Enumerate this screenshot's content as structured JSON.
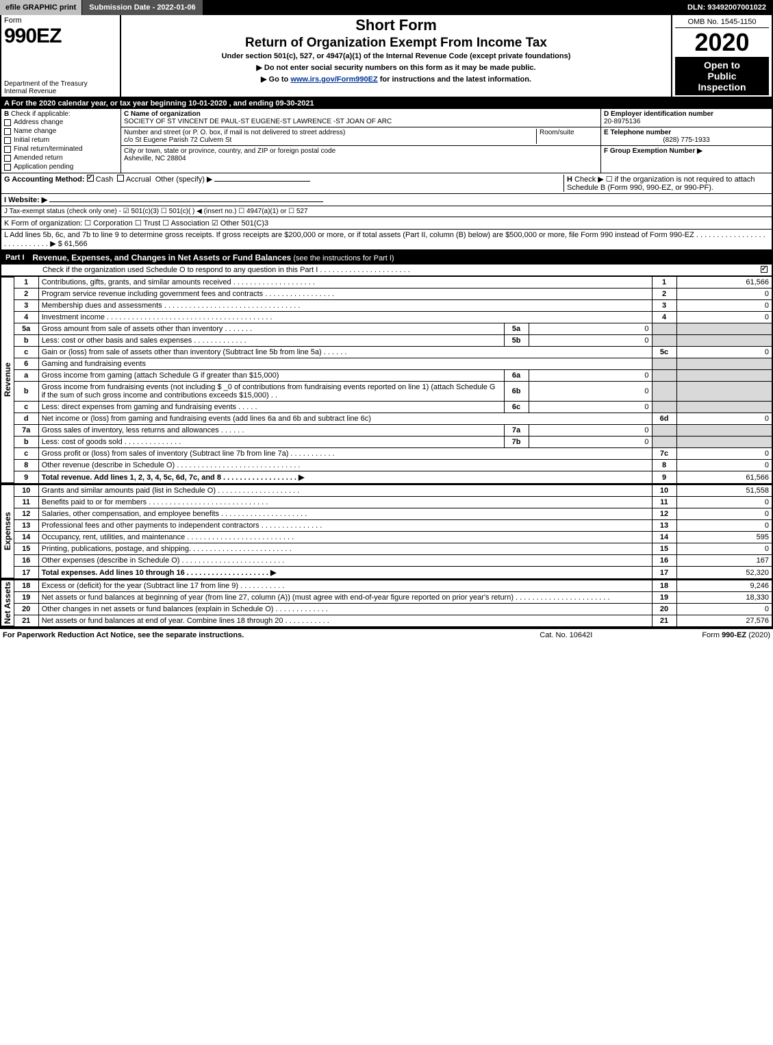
{
  "topbar": {
    "efile": "efile GRAPHIC print",
    "submission": "Submission Date - 2022-01-06",
    "dln": "DLN: 93492007001022"
  },
  "header": {
    "form_word": "Form",
    "form_num": "990EZ",
    "dept1": "Department of the Treasury",
    "dept2": "Internal Revenue",
    "short_form": "Short Form",
    "title": "Return of Organization Exempt From Income Tax",
    "under": "Under section 501(c), 527, or 4947(a)(1) of the Internal Revenue Code (except private foundations)",
    "warn": "▶ Do not enter social security numbers on this form as it may be made public.",
    "goto_pre": "▶ Go to ",
    "goto_link": "www.irs.gov/Form990EZ",
    "goto_post": " for instructions and the latest information.",
    "omb": "OMB No. 1545-1150",
    "year": "2020",
    "open1": "Open to",
    "open2": "Public",
    "open3": "Inspection"
  },
  "row_a": "A For the 2020 calendar year, or tax year beginning 10-01-2020 , and ending 09-30-2021",
  "boxB": {
    "title": "B",
    "check_if": "Check if applicable:",
    "opts": [
      "Address change",
      "Name change",
      "Initial return",
      "Final return/terminated",
      "Amended return",
      "Application pending"
    ]
  },
  "boxC": {
    "name_lbl": "C Name of organization",
    "name": "SOCIETY OF ST VINCENT DE PAUL-ST EUGENE-ST LAWRENCE -ST JOAN OF ARC",
    "addr_lbl": "Number and street (or P. O. box, if mail is not delivered to street address)",
    "addr": "c/o St Eugene Parish 72 Culvern St",
    "room_lbl": "Room/suite",
    "city_lbl": "City or town, state or province, country, and ZIP or foreign postal code",
    "city": "Asheville, NC  28804"
  },
  "boxD": {
    "ein_lbl": "D Employer identification number",
    "ein": "20-8975136",
    "tel_lbl": "E Telephone number",
    "tel": "(828) 775-1933",
    "grp_lbl": "F Group Exemption Number    ▶"
  },
  "rowG": {
    "label": "G Accounting Method:",
    "cash": "Cash",
    "accrual": "Accrual",
    "other": "Other (specify) ▶",
    "h_lbl": "H",
    "h_text": "Check ▶ ☐ if the organization is not required to attach Schedule B (Form 990, 990-EZ, or 990-PF)."
  },
  "rowI": "I Website: ▶",
  "rowJ": "J Tax-exempt status (check only one) - ☑ 501(c)(3) ☐ 501(c)(  ) ◀ (insert no.) ☐ 4947(a)(1) or ☐ 527",
  "rowK": "K Form of organization:  ☐ Corporation  ☐ Trust  ☐ Association  ☑ Other 501(C)3",
  "rowL": "L Add lines 5b, 6c, and 7b to line 9 to determine gross receipts. If gross receipts are $200,000 or more, or if total assets (Part II, column (B) below) are $500,000 or more, file Form 990 instead of Form 990-EZ  . . . . . . . . . . . . . . . . . . . . . . . . . . . . ▶ $ 61,566",
  "part1": {
    "label": "Part I",
    "title": "Revenue, Expenses, and Changes in Net Assets or Fund Balances",
    "sub": "(see the instructions for Part I)",
    "check_o": "Check if the organization used Schedule O to respond to any question in this Part I . . . . . . . . . . . . . . . . . . . . . ."
  },
  "side_labels": {
    "rev": "Revenue",
    "exp": "Expenses",
    "net": "Net Assets"
  },
  "revenue": [
    {
      "n": "1",
      "desc": "Contributions, gifts, grants, and similar amounts received  . . . . . . . . . . . . . . . . . . . .",
      "ref": "1",
      "val": "61,566"
    },
    {
      "n": "2",
      "desc": "Program service revenue including government fees and contracts  . . . . . . . . . . . . . . . . .",
      "ref": "2",
      "val": "0"
    },
    {
      "n": "3",
      "desc": "Membership dues and assessments  . . . . . . . . . . . . . . . . . . . . . . . . . . . . . . . . .",
      "ref": "3",
      "val": "0"
    },
    {
      "n": "4",
      "desc": "Investment income  . . . . . . . . . . . . . . . . . . . . . . . . . . . . . . . . . . . . . . . .",
      "ref": "4",
      "val": "0"
    },
    {
      "n": "5a",
      "desc": "Gross amount from sale of assets other than inventory  . . . . . . .",
      "sub_ref": "5a",
      "sub_val": "0"
    },
    {
      "n": "b",
      "desc": "Less: cost or other basis and sales expenses  . . . . . . . . . . . . .",
      "sub_ref": "5b",
      "sub_val": "0"
    },
    {
      "n": "c",
      "desc": "Gain or (loss) from sale of assets other than inventory (Subtract line 5b from line 5a)  . . . . . .",
      "ref": "5c",
      "val": "0"
    },
    {
      "n": "6",
      "desc": "Gaming and fundraising events",
      "header": true
    },
    {
      "n": "a",
      "desc": "Gross income from gaming (attach Schedule G if greater than $15,000)",
      "sub_ref": "6a",
      "sub_val": "0"
    },
    {
      "n": "b",
      "desc": "Gross income from fundraising events (not including $ _0                    of contributions from fundraising events reported on line 1) (attach Schedule G if the sum of such gross income and contributions exceeds $15,000)      .  .",
      "sub_ref": "6b",
      "sub_val": "0"
    },
    {
      "n": "c",
      "desc": "Less: direct expenses from gaming and fundraising events  . . . . .",
      "sub_ref": "6c",
      "sub_val": "0"
    },
    {
      "n": "d",
      "desc": "Net income or (loss) from gaming and fundraising events (add lines 6a and 6b and subtract line 6c)",
      "ref": "6d",
      "val": "0"
    },
    {
      "n": "7a",
      "desc": "Gross sales of inventory, less returns and allowances  . . . . . .",
      "sub_ref": "7a",
      "sub_val": "0"
    },
    {
      "n": "b",
      "desc": "Less: cost of goods sold           .  .  .  .  .  .  .  .  .  .  .  .  .  .",
      "sub_ref": "7b",
      "sub_val": "0"
    },
    {
      "n": "c",
      "desc": "Gross profit or (loss) from sales of inventory (Subtract line 7b from line 7a)  . . . . . . . . . . .",
      "ref": "7c",
      "val": "0"
    },
    {
      "n": "8",
      "desc": "Other revenue (describe in Schedule O)  . . . . . . . . . . . . . . . . . . . . . . . . . . . . . .",
      "ref": "8",
      "val": "0"
    },
    {
      "n": "9",
      "desc": "Total revenue. Add lines 1, 2, 3, 4, 5c, 6d, 7c, and 8   . . . . . . . . . . . . . . . . . .        ▶",
      "ref": "9",
      "val": "61,566",
      "bold": true
    }
  ],
  "expenses": [
    {
      "n": "10",
      "desc": "Grants and similar amounts paid (list in Schedule O)  . . . . . . . . . . . . . . . . . . . .",
      "ref": "10",
      "val": "51,558"
    },
    {
      "n": "11",
      "desc": "Benefits paid to or for members       . . . . . . . . . . . . . . . . . . . . . . . . . . . . .",
      "ref": "11",
      "val": "0"
    },
    {
      "n": "12",
      "desc": "Salaries, other compensation, and employee benefits  . . . . . . . . . . . . . . . . . . . . .",
      "ref": "12",
      "val": "0"
    },
    {
      "n": "13",
      "desc": "Professional fees and other payments to independent contractors  . . . . . . . . . . . . . . .",
      "ref": "13",
      "val": "0"
    },
    {
      "n": "14",
      "desc": "Occupancy, rent, utilities, and maintenance . . . . . . . . . . . . . . . . . . . . . . . . . .",
      "ref": "14",
      "val": "595"
    },
    {
      "n": "15",
      "desc": "Printing, publications, postage, and shipping.  . . . . . . . . . . . . . . . . . . . . . . . .",
      "ref": "15",
      "val": "0"
    },
    {
      "n": "16",
      "desc": "Other expenses (describe in Schedule O)      . . . . . . . . . . . . . . . . . . . . . . . . .",
      "ref": "16",
      "val": "167"
    },
    {
      "n": "17",
      "desc": "Total expenses. Add lines 10 through 16      . . . . . . . . . . . . . . . . . . . .         ▶",
      "ref": "17",
      "val": "52,320",
      "bold": true
    }
  ],
  "netassets": [
    {
      "n": "18",
      "desc": "Excess or (deficit) for the year (Subtract line 17 from line 9)        .  .  .  .  .  .  .  .  .  .  .",
      "ref": "18",
      "val": "9,246"
    },
    {
      "n": "19",
      "desc": "Net assets or fund balances at beginning of year (from line 27, column (A)) (must agree with end-of-year figure reported on prior year's return) . . . . . . . . . . . . . . . . . . . . . . .",
      "ref": "19",
      "val": "18,330"
    },
    {
      "n": "20",
      "desc": "Other changes in net assets or fund balances (explain in Schedule O) . . . . . . . . . . . . .",
      "ref": "20",
      "val": "0"
    },
    {
      "n": "21",
      "desc": "Net assets or fund balances at end of year. Combine lines 18 through 20 . . . . . . . . . . .",
      "ref": "21",
      "val": "27,576"
    }
  ],
  "footer": {
    "left": "For Paperwork Reduction Act Notice, see the separate instructions.",
    "mid": "Cat. No. 10642I",
    "right": "Form 990-EZ (2020)"
  }
}
